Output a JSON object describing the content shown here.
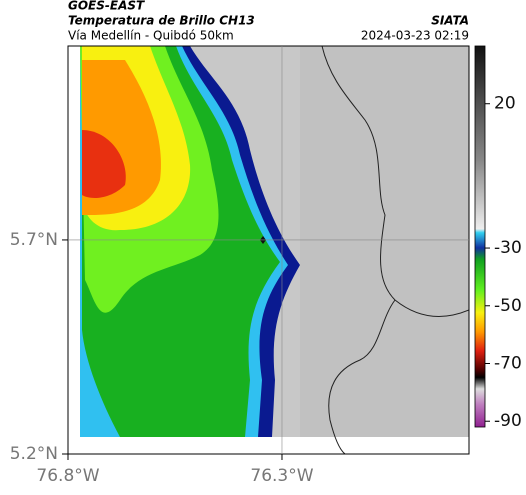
{
  "header": {
    "title": "GOES-EAST",
    "subtitle": "Temperatura de Brillo CH13",
    "route": "Vía Medellín - Quibdó 50km",
    "source": "SIATA",
    "timestamp": "2024-03-23 02:19"
  },
  "map": {
    "xlim": [
      -76.8,
      -75.863
    ],
    "ylim": [
      5.2,
      6.153
    ],
    "xticks": [
      {
        "value": -76.8,
        "label": "76.8°W"
      },
      {
        "value": -76.3,
        "label": "76.3°W"
      }
    ],
    "yticks": [
      {
        "value": 5.2,
        "label": "5.2°N"
      },
      {
        "value": 5.7,
        "label": "5.7°N"
      }
    ],
    "grid": true
  },
  "colorbar": {
    "clim": [
      -92,
      40
    ],
    "ticks": [
      20,
      -30,
      -50,
      -70,
      -90
    ]
  }
}
